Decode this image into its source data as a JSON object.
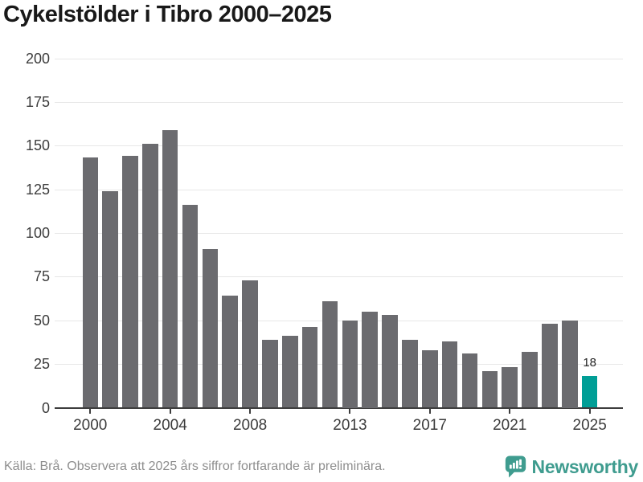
{
  "chart_data": {
    "type": "bar",
    "title": "Cykelstölder i Tibro 2000–2025",
    "categories": [
      2000,
      2001,
      2002,
      2003,
      2004,
      2005,
      2006,
      2007,
      2008,
      2009,
      2010,
      2011,
      2012,
      2013,
      2014,
      2015,
      2016,
      2017,
      2018,
      2019,
      2020,
      2021,
      2022,
      2023,
      2024,
      2025
    ],
    "values": [
      143,
      124,
      144,
      151,
      159,
      116,
      91,
      64,
      73,
      39,
      41,
      46,
      61,
      50,
      55,
      53,
      39,
      33,
      38,
      31,
      21,
      23,
      32,
      48,
      50,
      18
    ],
    "ylim": [
      0,
      200
    ],
    "yticks": [
      0,
      25,
      50,
      75,
      100,
      125,
      150,
      175,
      200
    ],
    "xticks": [
      2000,
      2004,
      2008,
      2013,
      2017,
      2021,
      2025
    ],
    "grid": true,
    "legend": false,
    "bar_color": "#6b6b6f",
    "highlight_color": "#009e96",
    "highlight_year": 2025,
    "highlight_label": "18"
  },
  "footer": {
    "source": "Källa: Brå. Observera att 2025 års siffror fortfarande är preliminära.",
    "brand": "Newsworthy",
    "brand_color": "#3f9c8f"
  }
}
